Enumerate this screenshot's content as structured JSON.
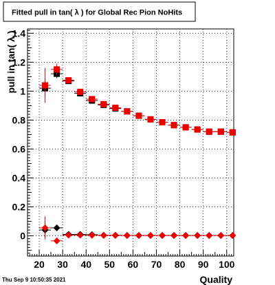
{
  "title": "Fitted pull in tan( λ ) for Global Rec Pion NoHits",
  "timestamp": "Thu Sep  9 10:50:35 2021",
  "chart_data": {
    "type": "scatter",
    "title": "Fitted pull in tan( λ ) for Global Rec Pion NoHits",
    "xlabel": "Quality",
    "ylabel": "pull in tan( λ )",
    "xlim": [
      15,
      103
    ],
    "ylim": [
      -0.14,
      1.43
    ],
    "xticks": [
      20,
      30,
      40,
      50,
      60,
      70,
      80,
      90,
      100
    ],
    "yticks": [
      0,
      0.2,
      0.4,
      0.6,
      0.8,
      1,
      1.2,
      1.4
    ],
    "grid": true,
    "series": [
      {
        "marker": "square",
        "color": "#000000",
        "x": [
          22.5,
          27.5,
          32.5,
          37.5,
          42.5,
          47.5,
          52.5,
          57.5,
          62.5,
          67.5,
          72.5,
          77.5,
          82.5,
          87.5,
          92.5,
          97.5,
          102.5
        ],
        "y": [
          1.02,
          1.12,
          1.07,
          0.985,
          0.935,
          0.905,
          0.88,
          0.86,
          0.83,
          0.805,
          0.785,
          0.765,
          0.75,
          0.735,
          0.72,
          0.72,
          0.715
        ],
        "yerr": [
          0.06,
          0.03,
          0.01,
          0.01,
          0.01,
          0.01,
          0.008,
          0.008,
          0.008,
          0.008,
          0.008,
          0.008,
          0.008,
          0.008,
          0.008,
          0.008,
          0.008
        ]
      },
      {
        "marker": "square",
        "color": "#ee0000",
        "x": [
          22.5,
          27.5,
          32.5,
          37.5,
          42.5,
          47.5,
          52.5,
          57.5,
          62.5,
          67.5,
          72.5,
          77.5,
          82.5,
          87.5,
          92.5,
          97.5,
          102.5
        ],
        "y": [
          1.04,
          1.15,
          1.075,
          0.995,
          0.945,
          0.91,
          0.885,
          0.86,
          0.83,
          0.805,
          0.785,
          0.765,
          0.75,
          0.735,
          0.72,
          0.72,
          0.715
        ],
        "yerr": [
          0.12,
          0.04,
          0.012,
          0.01,
          0.01,
          0.01,
          0.008,
          0.008,
          0.008,
          0.008,
          0.008,
          0.008,
          0.008,
          0.008,
          0.008,
          0.008,
          0.008
        ]
      },
      {
        "marker": "diamond",
        "color": "#000000",
        "x": [
          22.5,
          27.5,
          32.5,
          37.5,
          42.5,
          47.5,
          52.5,
          57.5,
          62.5,
          67.5,
          72.5,
          77.5,
          82.5,
          87.5,
          92.5,
          97.5,
          102.5
        ],
        "y": [
          0.04,
          0.055,
          0.01,
          0.01,
          0.008,
          0.004,
          0.004,
          0.003,
          0.003,
          0.003,
          0.003,
          0.003,
          0.003,
          0.003,
          0.003,
          0.003,
          0.003
        ],
        "yerr": [
          0.05,
          0.02,
          0.008,
          0.006,
          0.005,
          0.004,
          0.004,
          0.004,
          0.004,
          0.004,
          0.004,
          0.004,
          0.004,
          0.004,
          0.004,
          0.004,
          0.004
        ]
      },
      {
        "marker": "diamond",
        "color": "#ee0000",
        "x": [
          22.5,
          27.5,
          32.5,
          37.5,
          42.5,
          47.5,
          52.5,
          57.5,
          62.5,
          67.5,
          72.5,
          77.5,
          82.5,
          87.5,
          92.5,
          97.5,
          102.5
        ],
        "y": [
          0.055,
          -0.035,
          0.005,
          0.005,
          0.004,
          0.003,
          0.003,
          0.002,
          0.002,
          0.002,
          0.002,
          0.002,
          0.002,
          0.002,
          0.002,
          0.002,
          0.002
        ],
        "yerr": [
          0.08,
          0.02,
          0.008,
          0.006,
          0.005,
          0.004,
          0.004,
          0.004,
          0.004,
          0.004,
          0.004,
          0.004,
          0.004,
          0.004,
          0.004,
          0.004,
          0.004
        ]
      }
    ]
  }
}
